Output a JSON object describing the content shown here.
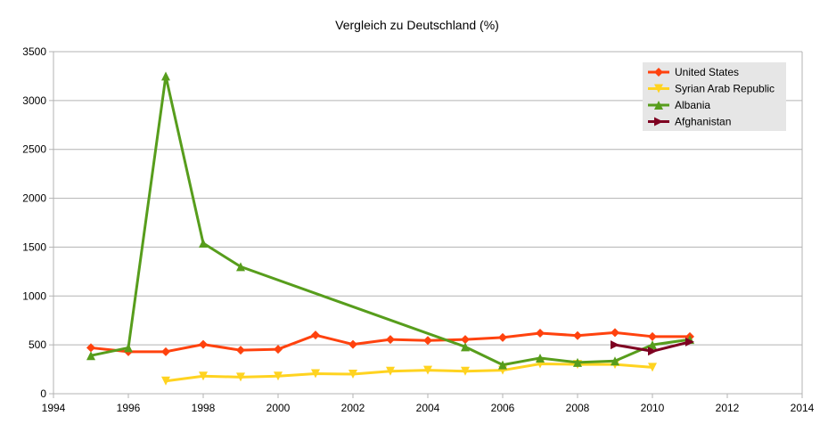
{
  "chart_data": {
    "type": "line",
    "title": "Vergleich zu Deutschland (%)",
    "xlabel": "",
    "ylabel": "",
    "xlim": [
      1994,
      2014
    ],
    "ylim": [
      0,
      3500
    ],
    "xticks": [
      "1994",
      "1996",
      "1998",
      "2000",
      "2002",
      "2004",
      "2006",
      "2008",
      "2010",
      "2012",
      "2014"
    ],
    "yticks": [
      "0",
      "500",
      "1000",
      "1500",
      "2000",
      "2500",
      "3000",
      "3500"
    ],
    "grid": "horizontal",
    "legend_position": "top-right",
    "series": [
      {
        "name": "United States",
        "color": "#ff420e",
        "marker": "diamond",
        "x": [
          1995,
          1996,
          1997,
          1998,
          1999,
          2000,
          2001,
          2002,
          2003,
          2004,
          2005,
          2006,
          2007,
          2008,
          2009,
          2010,
          2011
        ],
        "y": [
          470,
          430,
          430,
          505,
          445,
          455,
          600,
          505,
          555,
          545,
          555,
          575,
          620,
          595,
          625,
          585,
          585
        ]
      },
      {
        "name": "Syrian Arab Republic",
        "color": "#ffd320",
        "marker": "triangle-down",
        "x": [
          1997,
          1998,
          1999,
          2000,
          2001,
          2002,
          2003,
          2004,
          2005,
          2006,
          2007,
          2008,
          2009,
          2010
        ],
        "y": [
          130,
          180,
          170,
          180,
          205,
          200,
          230,
          240,
          230,
          240,
          305,
          300,
          300,
          270
        ]
      },
      {
        "name": "Albania",
        "color": "#579d1c",
        "marker": "triangle-up",
        "x": [
          1995,
          1996,
          1997,
          1998,
          1999,
          2005,
          2006,
          2007,
          2008,
          2009,
          2010,
          2011
        ],
        "y": [
          390,
          470,
          3250,
          1540,
          1300,
          480,
          295,
          365,
          320,
          335,
          500,
          555
        ]
      },
      {
        "name": "Afghanistan",
        "color": "#7e0021",
        "marker": "triangle-right",
        "x": [
          2009,
          2010,
          2011
        ],
        "y": [
          500,
          435,
          530
        ]
      }
    ]
  }
}
